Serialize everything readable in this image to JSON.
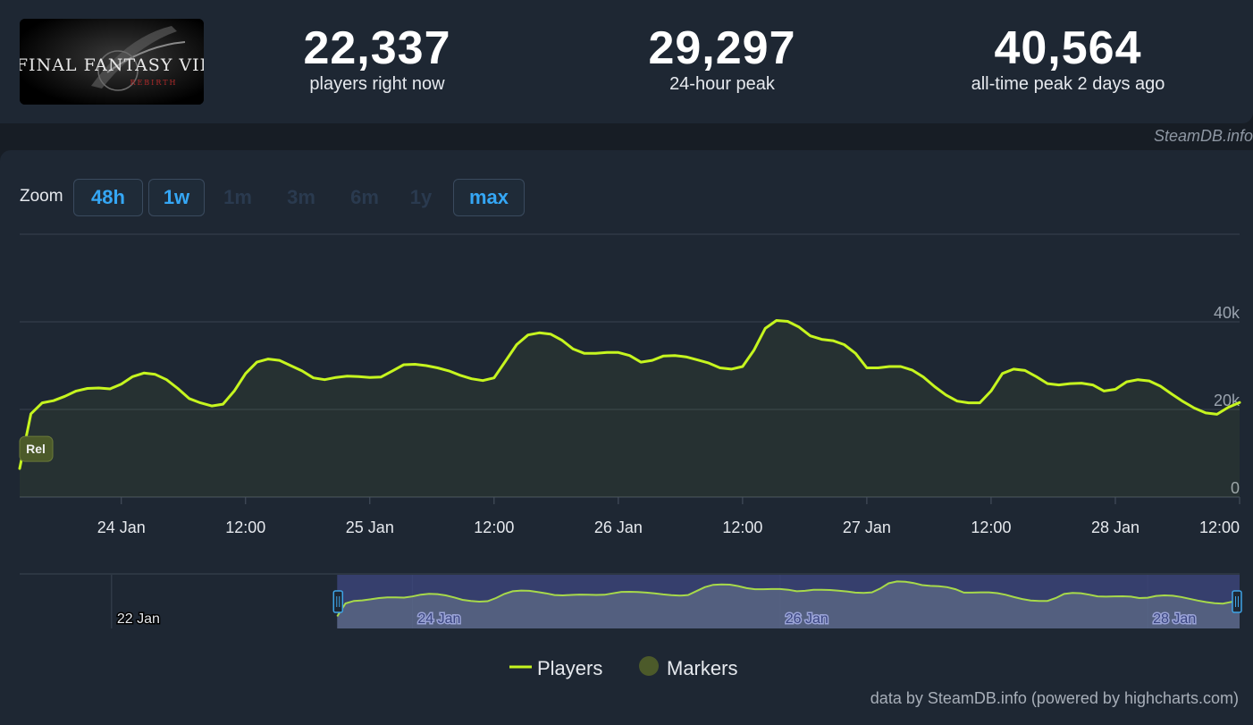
{
  "header": {
    "logo_text": "FINAL FANTASY VII",
    "logo_subtext": "REBIRTH",
    "stats": [
      {
        "value": "22,337",
        "label": "players right now"
      },
      {
        "value": "29,297",
        "label": "24-hour peak"
      },
      {
        "value": "40,564",
        "label": "all-time peak 2 days ago"
      }
    ]
  },
  "attribution": "SteamDB.info",
  "zoom": {
    "label": "Zoom",
    "buttons": [
      {
        "label": "48h",
        "active": true
      },
      {
        "label": "1w",
        "active": true
      },
      {
        "label": "1m",
        "active": false
      },
      {
        "label": "3m",
        "active": false
      },
      {
        "label": "6m",
        "active": false
      },
      {
        "label": "1y",
        "active": false
      },
      {
        "label": "max",
        "active": true
      }
    ]
  },
  "credit": "data by SteamDB.info (powered by highcharts.com)",
  "chart_data": {
    "type": "line",
    "series": [
      {
        "name": "Players",
        "color": "#c6f51f",
        "points": [
          [
            0,
            6500
          ],
          [
            1,
            19000
          ],
          [
            2,
            21500
          ],
          [
            3,
            22000
          ],
          [
            4,
            23000
          ],
          [
            5,
            24200
          ],
          [
            6,
            24800
          ],
          [
            7,
            24900
          ],
          [
            8,
            24700
          ],
          [
            9,
            25800
          ],
          [
            10,
            27500
          ],
          [
            11,
            28300
          ],
          [
            12,
            28000
          ],
          [
            13,
            26800
          ],
          [
            14,
            24800
          ],
          [
            15,
            22500
          ],
          [
            16,
            21500
          ],
          [
            17,
            20800
          ],
          [
            18,
            21200
          ],
          [
            19,
            24200
          ],
          [
            20,
            28200
          ],
          [
            21,
            30800
          ],
          [
            22,
            31500
          ],
          [
            23,
            31200
          ],
          [
            24,
            30000
          ],
          [
            25,
            28800
          ],
          [
            26,
            27200
          ],
          [
            27,
            26800
          ],
          [
            28,
            27300
          ],
          [
            29,
            27600
          ],
          [
            30,
            27500
          ],
          [
            31,
            27300
          ],
          [
            32,
            27400
          ],
          [
            33,
            28800
          ],
          [
            34,
            30200
          ],
          [
            35,
            30300
          ],
          [
            36,
            30000
          ],
          [
            37,
            29500
          ],
          [
            38,
            28800
          ],
          [
            39,
            27800
          ],
          [
            40,
            27000
          ],
          [
            41,
            26600
          ],
          [
            42,
            27200
          ],
          [
            43,
            31000
          ],
          [
            44,
            34800
          ],
          [
            45,
            37000
          ],
          [
            46,
            37500
          ],
          [
            47,
            37200
          ],
          [
            48,
            35800
          ],
          [
            49,
            33800
          ],
          [
            50,
            32800
          ],
          [
            51,
            32800
          ],
          [
            52,
            33000
          ],
          [
            53,
            33000
          ],
          [
            54,
            32300
          ],
          [
            55,
            30800
          ],
          [
            56,
            31200
          ],
          [
            57,
            32200
          ],
          [
            58,
            32300
          ],
          [
            59,
            32000
          ],
          [
            60,
            31300
          ],
          [
            61,
            30600
          ],
          [
            62,
            29500
          ],
          [
            63,
            29200
          ],
          [
            64,
            29800
          ],
          [
            65,
            33500
          ],
          [
            66,
            38500
          ],
          [
            67,
            40300
          ],
          [
            68,
            40100
          ],
          [
            69,
            38800
          ],
          [
            70,
            36800
          ],
          [
            71,
            36000
          ],
          [
            72,
            35700
          ],
          [
            73,
            34800
          ],
          [
            74,
            32800
          ],
          [
            75,
            29500
          ],
          [
            76,
            29500
          ],
          [
            77,
            29800
          ],
          [
            78,
            29800
          ],
          [
            79,
            29000
          ],
          [
            80,
            27400
          ],
          [
            81,
            25200
          ],
          [
            82,
            23300
          ],
          [
            83,
            21900
          ],
          [
            84,
            21500
          ],
          [
            85,
            21500
          ],
          [
            86,
            24200
          ],
          [
            87,
            28200
          ],
          [
            88,
            29200
          ],
          [
            89,
            28900
          ],
          [
            90,
            27500
          ],
          [
            91,
            25900
          ],
          [
            92,
            25600
          ],
          [
            93,
            25900
          ],
          [
            94,
            26000
          ],
          [
            95,
            25600
          ],
          [
            96,
            24200
          ],
          [
            97,
            24600
          ],
          [
            98,
            26300
          ],
          [
            99,
            26800
          ],
          [
            100,
            26500
          ],
          [
            101,
            25300
          ],
          [
            102,
            23500
          ],
          [
            103,
            21800
          ],
          [
            104,
            20300
          ],
          [
            105,
            19200
          ],
          [
            106,
            18900
          ],
          [
            107,
            20500
          ],
          [
            108,
            21600
          ]
        ]
      },
      {
        "name": "Markers",
        "color": "#4c5a2a",
        "points": [
          [
            0,
            11000
          ]
        ],
        "marker_label": "Rel"
      }
    ],
    "x_range": [
      0,
      108
    ],
    "y_range": [
      0,
      60000
    ],
    "y_ticks": [
      {
        "value": 0,
        "label": "0"
      },
      {
        "value": 20000,
        "label": "20k"
      },
      {
        "value": 40000,
        "label": "40k"
      }
    ],
    "x_ticks": [
      {
        "value": 9,
        "label": "24 Jan"
      },
      {
        "value": 20,
        "label": "12:00"
      },
      {
        "value": 31,
        "label": "25 Jan"
      },
      {
        "value": 42,
        "label": "12:00"
      },
      {
        "value": 53,
        "label": "26 Jan"
      },
      {
        "value": 64,
        "label": "12:00"
      },
      {
        "value": 75,
        "label": "27 Jan"
      },
      {
        "value": 86,
        "label": "12:00"
      },
      {
        "value": 97,
        "label": "28 Jan"
      },
      {
        "value": 108,
        "label": "12:00"
      }
    ],
    "navigator": {
      "x_range": [
        -38,
        108
      ],
      "selected_range": [
        0,
        108
      ],
      "ticks": [
        {
          "value": -27,
          "label": "22 Jan"
        },
        {
          "value": 9,
          "label": "24 Jan"
        },
        {
          "value": 53,
          "label": "26 Jan"
        },
        {
          "value": 97,
          "label": "28 Jan"
        }
      ]
    },
    "legend": {
      "position": "bottom-center",
      "items": [
        "Players",
        "Markers"
      ]
    },
    "grid": true
  }
}
